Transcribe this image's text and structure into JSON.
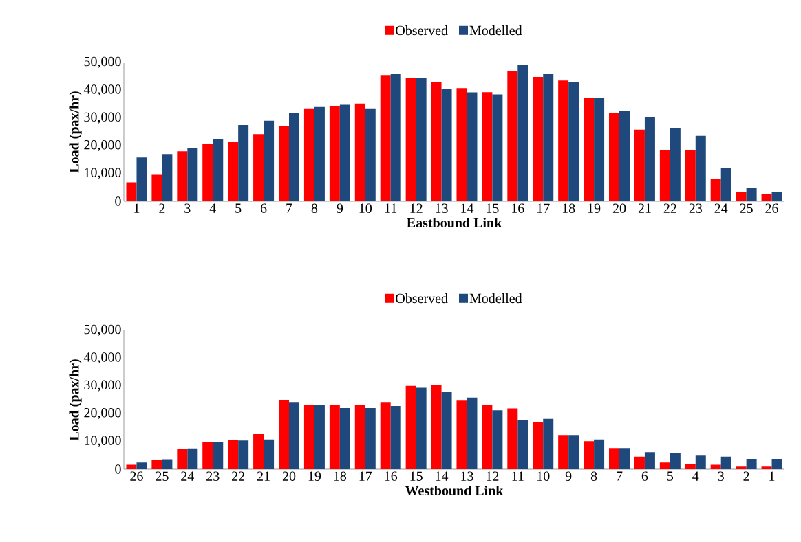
{
  "chart_data": [
    {
      "type": "bar",
      "legend": "top",
      "xlabel": "Eastbound Link",
      "ylabel": "Load (pax/hr)",
      "categories": [
        "1",
        "2",
        "3",
        "4",
        "5",
        "6",
        "7",
        "8",
        "9",
        "10",
        "11",
        "12",
        "13",
        "14",
        "15",
        "16",
        "17",
        "18",
        "19",
        "20",
        "21",
        "22",
        "23",
        "24",
        "25",
        "26"
      ],
      "ylim": [
        0,
        50000
      ],
      "yticks": [
        {
          "value": 0,
          "label": "0"
        },
        {
          "value": 10000,
          "label": "10,000"
        },
        {
          "value": 20000,
          "label": "20,000"
        },
        {
          "value": 30000,
          "label": "30,000"
        },
        {
          "value": 40000,
          "label": "40,000"
        },
        {
          "value": 50000,
          "label": "50,000"
        }
      ],
      "series": [
        {
          "name": "Observed",
          "color": "#ff0000",
          "values": [
            6800,
            9500,
            18000,
            20800,
            21500,
            24200,
            27000,
            33500,
            34300,
            35200,
            45500,
            44300,
            42800,
            40800,
            39300,
            46800,
            44800,
            43500,
            37300,
            31700,
            25800,
            18500,
            18500,
            7900,
            3300,
            2500
          ]
        },
        {
          "name": "Modelled",
          "color": "#1f497d",
          "values": [
            15800,
            17000,
            19200,
            22300,
            27500,
            29000,
            31700,
            34000,
            34800,
            33500,
            46000,
            44300,
            40500,
            39200,
            38500,
            49200,
            46000,
            42800,
            37300,
            32400,
            30200,
            26300,
            23600,
            11900,
            4800,
            3300
          ]
        }
      ]
    },
    {
      "type": "bar",
      "legend": "top",
      "xlabel": "Westbound Link",
      "ylabel": "Load (pax/hr)",
      "categories": [
        "26",
        "25",
        "24",
        "23",
        "22",
        "21",
        "20",
        "19",
        "18",
        "17",
        "16",
        "15",
        "14",
        "13",
        "12",
        "11",
        "10",
        "9",
        "8",
        "7",
        "6",
        "5",
        "4",
        "3",
        "2",
        "1"
      ],
      "ylim": [
        0,
        50000
      ],
      "yticks": [
        {
          "value": 0,
          "label": "0"
        },
        {
          "value": 10000,
          "label": "10,000"
        },
        {
          "value": 20000,
          "label": "20,000"
        },
        {
          "value": 30000,
          "label": "30,000"
        },
        {
          "value": 40000,
          "label": "40,000"
        },
        {
          "value": 50000,
          "label": "50,000"
        }
      ],
      "series": [
        {
          "name": "Observed",
          "color": "#ff0000",
          "values": [
            1600,
            3200,
            7200,
            9900,
            10600,
            12600,
            25000,
            23100,
            23100,
            23100,
            24200,
            30000,
            30400,
            24700,
            23000,
            21900,
            17000,
            12300,
            10100,
            7600,
            4500,
            2400,
            2000,
            1600,
            900,
            900
          ]
        },
        {
          "name": "Modelled",
          "color": "#1f497d",
          "values": [
            2400,
            3600,
            7500,
            9900,
            10300,
            10700,
            24200,
            23100,
            22000,
            22000,
            22800,
            29300,
            27800,
            25800,
            21200,
            17700,
            18100,
            12300,
            10700,
            7600,
            6100,
            5700,
            4900,
            4500,
            3700,
            3700
          ]
        }
      ]
    }
  ]
}
